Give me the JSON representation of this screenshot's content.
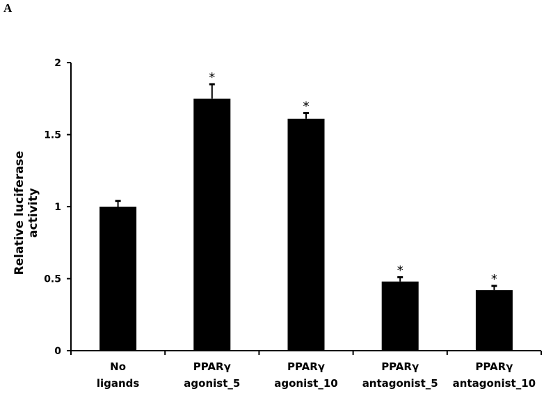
{
  "panel_label": "A",
  "chart_data": {
    "type": "bar",
    "title": "",
    "xlabel": "",
    "ylabel": "Relative luciferase activity",
    "ylim": [
      0,
      2
    ],
    "yticks": [
      "0",
      "0.5",
      "1",
      "1.5",
      "2"
    ],
    "grid": false,
    "legend": null,
    "categories": [
      "No ligands",
      "PPARγ agonist_5",
      "PPARγ agonist_10",
      "PPARγ antagonist_5",
      "PPARγ antagonist_10"
    ],
    "category_lines": [
      [
        "No",
        "ligands"
      ],
      [
        "PPARγ",
        "agonist_5"
      ],
      [
        "PPARγ",
        "agonist_10"
      ],
      [
        "PPARγ",
        "antagonist_5"
      ],
      [
        "PPARγ",
        "antagonist_10"
      ]
    ],
    "values": [
      1.0,
      1.75,
      1.61,
      0.48,
      0.42
    ],
    "errors": [
      0.04,
      0.1,
      0.04,
      0.03,
      0.03
    ],
    "significance": [
      "",
      "*",
      "*",
      "*",
      "*"
    ],
    "bar_color": "#000000"
  }
}
